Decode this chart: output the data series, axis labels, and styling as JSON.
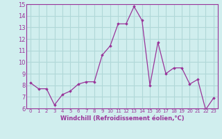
{
  "x": [
    0,
    1,
    2,
    3,
    4,
    5,
    6,
    7,
    8,
    9,
    10,
    11,
    12,
    13,
    14,
    15,
    16,
    17,
    18,
    19,
    20,
    21,
    22,
    23
  ],
  "y": [
    8.2,
    7.7,
    7.7,
    6.3,
    7.2,
    7.5,
    8.1,
    8.3,
    8.3,
    10.6,
    11.4,
    13.3,
    13.3,
    14.8,
    13.6,
    8.0,
    11.7,
    9.0,
    9.5,
    9.5,
    8.1,
    8.5,
    5.9,
    6.9
  ],
  "line_color": "#993399",
  "marker": "D",
  "marker_size": 1.8,
  "linewidth": 0.9,
  "xlabel": "Windchill (Refroidissement éolien,°C)",
  "xlabel_fontsize": 6.0,
  "xtick_labels": [
    "0",
    "1",
    "2",
    "3",
    "4",
    "5",
    "6",
    "7",
    "8",
    "9",
    "10",
    "11",
    "12",
    "13",
    "14",
    "15",
    "16",
    "17",
    "18",
    "19",
    "20",
    "21",
    "22",
    "23"
  ],
  "ylim": [
    6,
    15
  ],
  "yticks": [
    6,
    7,
    8,
    9,
    10,
    11,
    12,
    13,
    14,
    15
  ],
  "ytick_fontsize": 6.0,
  "xtick_fontsize": 5.0,
  "bg_color": "#d0eeee",
  "grid_color": "#b0d8d8",
  "axes_color": "#993399"
}
